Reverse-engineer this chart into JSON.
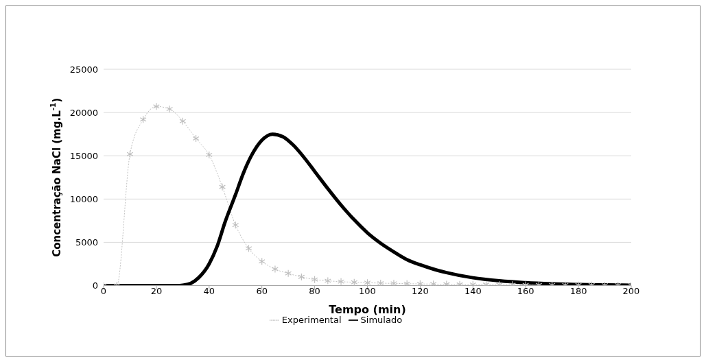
{
  "chart_data": {
    "type": "line",
    "xlabel": "Tempo (min)",
    "ylabel": "Concentração NaCl (mg.L$^{-1}$)",
    "xlim": [
      0,
      200
    ],
    "xticks": [
      0,
      20,
      40,
      60,
      80,
      100,
      120,
      140,
      160,
      180,
      200
    ],
    "ylim": [
      0,
      25000
    ],
    "yticks": [
      0,
      5000,
      10000,
      15000,
      20000,
      25000
    ],
    "grid": "y",
    "legend": "bottom",
    "series": [
      {
        "name": "Experimental",
        "color": "#bfbfbf",
        "marker": "cross",
        "line_style": "dotted",
        "x": [
          0,
          5,
          10,
          15,
          20,
          25,
          30,
          35,
          40,
          45,
          50,
          55,
          60,
          65,
          70,
          75,
          80,
          85,
          90,
          95,
          100,
          105,
          110,
          115,
          120,
          125,
          130,
          135,
          140,
          145,
          150,
          155,
          160,
          165,
          170,
          175,
          180,
          185,
          190,
          195,
          200
        ],
        "values": [
          0,
          0,
          15200,
          19200,
          20700,
          20400,
          19000,
          17000,
          15100,
          11400,
          7000,
          4300,
          2800,
          1900,
          1400,
          1000,
          700,
          550,
          450,
          380,
          330,
          280,
          250,
          220,
          190,
          170,
          150,
          130,
          120,
          110,
          100,
          90,
          80,
          70,
          60,
          60,
          50,
          50,
          40,
          40,
          30
        ]
      },
      {
        "name": "Simulado",
        "color": "#000000",
        "marker": "none",
        "line_style": "solid",
        "x": [
          0,
          10,
          20,
          28,
          30,
          33,
          36,
          40,
          43,
          46,
          50,
          53,
          56,
          60,
          64,
          68,
          72,
          76,
          80,
          85,
          90,
          95,
          100,
          105,
          110,
          115,
          120,
          125,
          130,
          140,
          150,
          160,
          170,
          180,
          190,
          200
        ],
        "values": [
          0,
          0,
          0,
          0,
          50,
          250,
          900,
          2500,
          4500,
          7300,
          10500,
          13000,
          15000,
          16800,
          17500,
          17200,
          16200,
          14800,
          13200,
          11200,
          9300,
          7600,
          6100,
          4900,
          3900,
          3000,
          2400,
          1900,
          1500,
          900,
          550,
          330,
          200,
          120,
          70,
          40
        ]
      }
    ]
  }
}
